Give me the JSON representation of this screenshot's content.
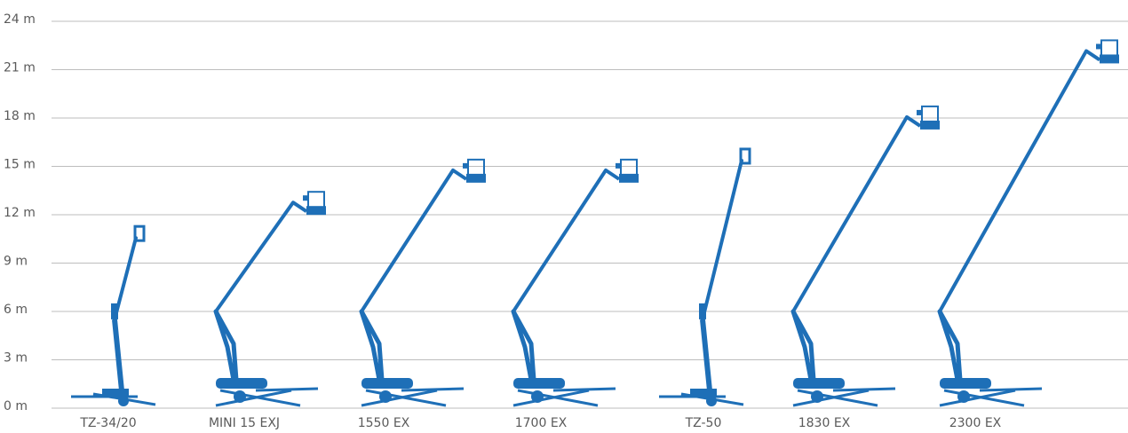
{
  "chart_data": {
    "type": "pictogram",
    "categories": [
      "TZ-34/20",
      "MINI 15 EXJ",
      "1550 EX",
      "1700 EX",
      "TZ-50",
      "1830 EX",
      "2300 EX"
    ],
    "values": [
      11,
      13.2,
      15.2,
      15.2,
      15.8,
      18.5,
      22.6
    ],
    "color": "#1e6fb7",
    "ylim": [
      0,
      24
    ],
    "yticks": [
      {
        "value": 0,
        "label": "0 m"
      },
      {
        "value": 3,
        "label": "3 m"
      },
      {
        "value": 6,
        "label": "6 m"
      },
      {
        "value": 9,
        "label": "9 m"
      },
      {
        "value": 12,
        "label": "12 m"
      },
      {
        "value": 15,
        "label": "15 m"
      },
      {
        "value": 18,
        "label": "18 m"
      },
      {
        "value": 21,
        "label": "21 m"
      },
      {
        "value": 24,
        "label": "24 m"
      }
    ],
    "grid": true
  }
}
